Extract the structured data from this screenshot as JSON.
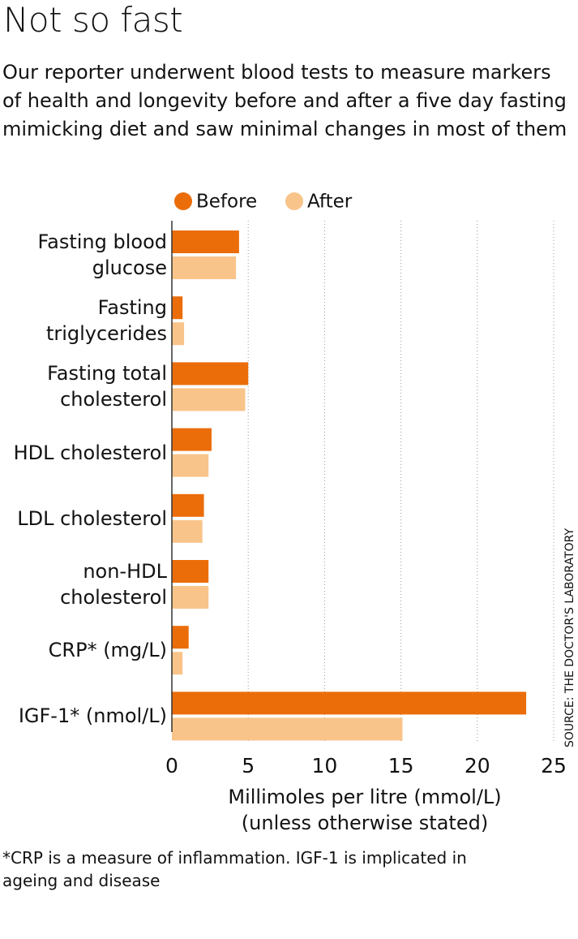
{
  "chart_data": {
    "type": "hbar",
    "title": "Not so fast",
    "subtitle": "Our reporter underwent blood tests to measure markers of health and longevity before and after a five day fasting mimicking diet and saw minimal changes in most of them",
    "categories": [
      "Fasting blood glucose",
      "Fasting triglycerides",
      "Fasting total cholesterol",
      "HDL cholesterol",
      "LDL cholesterol",
      "non-HDL cholesterol",
      "CRP* (mg/L)",
      "IGF-1* (nmol/L)"
    ],
    "series": [
      {
        "name": "Before",
        "color": "#eb6d0a",
        "values": [
          4.4,
          0.7,
          5.0,
          2.6,
          2.1,
          2.4,
          1.1,
          23.2
        ]
      },
      {
        "name": "After",
        "color": "#f9c48a",
        "values": [
          4.2,
          0.8,
          4.8,
          2.4,
          2.0,
          2.4,
          0.7,
          15.1
        ]
      }
    ],
    "xlim": [
      0,
      25
    ],
    "xticks": [
      0,
      5,
      10,
      15,
      20,
      25
    ],
    "xlabel": [
      "Millimoles per litre (mmol/L)",
      "(unless otherwise stated)"
    ],
    "grid": true,
    "source": "SOURCE: THE DOCTOR'S LABORATORY",
    "footnote": "*CRP is a measure of inflammation. IGF-1 is implicated in ageing and disease"
  }
}
